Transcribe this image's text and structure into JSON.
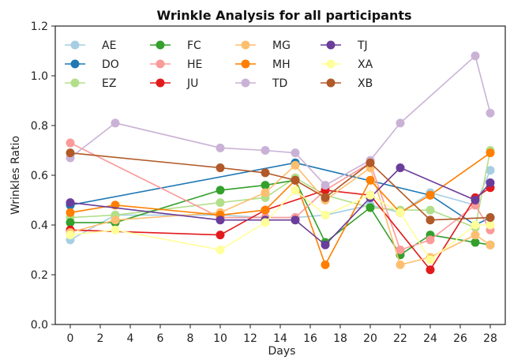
{
  "chart_data": {
    "type": "line",
    "title": "Wrinkle Analysis for all participants",
    "xlabel": "Days",
    "ylabel": "Wrinkles Ratio",
    "xlim": [
      -1,
      29
    ],
    "ylim": [
      0.0,
      1.2
    ],
    "xticks": [
      0,
      2,
      4,
      6,
      8,
      10,
      12,
      14,
      16,
      18,
      20,
      22,
      24,
      26,
      28
    ],
    "yticks": [
      0.0,
      0.2,
      0.4,
      0.6,
      0.8,
      1.0,
      1.2
    ],
    "ytick_labels": [
      "0.0",
      "0.2",
      "0.4",
      "0.6",
      "0.8",
      "1.0",
      "1.2"
    ],
    "grid": false,
    "legend_position": "top-left",
    "series": [
      {
        "name": "AE",
        "color": "#a6cee3",
        "x": [
          0,
          3,
          10,
          13,
          15,
          17,
          20,
          22,
          24,
          27,
          28
        ],
        "y": [
          0.34,
          0.44,
          0.44,
          0.43,
          0.43,
          0.44,
          0.48,
          0.45,
          0.53,
          0.48,
          0.62
        ]
      },
      {
        "name": "DO",
        "color": "#1f78b4",
        "x": [
          0,
          15,
          24,
          27,
          28
        ],
        "y": [
          0.48,
          0.65,
          0.52,
          0.4,
          0.43
        ]
      },
      {
        "name": "EZ",
        "color": "#b2df8a",
        "x": [
          0,
          3,
          10,
          13,
          15,
          17,
          20,
          22,
          24,
          27,
          28
        ],
        "y": [
          0.43,
          0.44,
          0.49,
          0.51,
          0.59,
          0.52,
          0.47,
          0.46,
          0.46,
          0.39,
          0.7
        ]
      },
      {
        "name": "FC",
        "color": "#33a02c",
        "x": [
          0,
          3,
          10,
          13,
          15,
          17,
          20,
          22,
          24,
          27,
          28
        ],
        "y": [
          0.41,
          0.41,
          0.54,
          0.56,
          0.58,
          0.33,
          0.47,
          0.28,
          0.36,
          0.33,
          0.32
        ]
      },
      {
        "name": "HE",
        "color": "#fb9a99",
        "x": [
          0,
          10,
          13,
          15,
          17,
          20,
          22,
          24,
          27,
          28
        ],
        "y": [
          0.73,
          0.43,
          0.43,
          0.43,
          0.54,
          0.65,
          0.3,
          0.34,
          0.48,
          0.38
        ]
      },
      {
        "name": "JU",
        "color": "#e31a1c",
        "x": [
          0,
          10,
          13,
          17,
          20,
          24,
          27,
          28
        ],
        "y": [
          0.38,
          0.36,
          0.46,
          0.54,
          0.52,
          0.22,
          0.51,
          0.55
        ]
      },
      {
        "name": "MG",
        "color": "#fdbf6f",
        "x": [
          0,
          3,
          10,
          13,
          15,
          17,
          20,
          22,
          24,
          27,
          28
        ],
        "y": [
          0.37,
          0.42,
          0.45,
          0.53,
          0.64,
          0.5,
          0.63,
          0.24,
          0.27,
          0.36,
          0.32
        ]
      },
      {
        "name": "MH",
        "color": "#ff7f00",
        "x": [
          0,
          3,
          10,
          13,
          15,
          17,
          20,
          22,
          24,
          28
        ],
        "y": [
          0.45,
          0.48,
          0.44,
          0.46,
          0.58,
          0.24,
          0.58,
          0.45,
          0.52,
          0.69
        ]
      },
      {
        "name": "TD",
        "color": "#cab2d6",
        "x": [
          0,
          3,
          10,
          13,
          15,
          17,
          20,
          22,
          27,
          28
        ],
        "y": [
          0.67,
          0.81,
          0.71,
          0.7,
          0.69,
          0.56,
          0.66,
          0.81,
          1.08,
          0.85
        ]
      },
      {
        "name": "TJ",
        "color": "#6a3d9a",
        "x": [
          0,
          10,
          13,
          15,
          17,
          20,
          22,
          27,
          28
        ],
        "y": [
          0.49,
          0.42,
          0.42,
          0.42,
          0.32,
          0.51,
          0.63,
          0.5,
          0.57
        ]
      },
      {
        "name": "XA",
        "color": "#ffff99",
        "x": [
          0,
          3,
          10,
          13,
          15,
          17,
          20,
          22,
          24,
          27,
          28
        ],
        "y": [
          0.36,
          0.38,
          0.3,
          0.41,
          0.54,
          0.44,
          0.52,
          0.45,
          0.26,
          0.4,
          0.4
        ]
      },
      {
        "name": "XB",
        "color": "#b15928",
        "x": [
          0,
          10,
          13,
          15,
          17,
          20,
          24,
          28
        ],
        "y": [
          0.69,
          0.63,
          0.61,
          0.58,
          0.51,
          0.65,
          0.42,
          0.43
        ]
      }
    ]
  }
}
